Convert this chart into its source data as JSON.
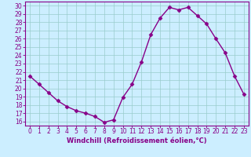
{
  "hours": [
    0,
    1,
    2,
    3,
    4,
    5,
    6,
    7,
    8,
    9,
    10,
    11,
    12,
    13,
    14,
    15,
    16,
    17,
    18,
    19,
    20,
    21,
    22,
    23
  ],
  "values": [
    21.5,
    20.5,
    19.5,
    18.5,
    17.8,
    17.3,
    17.0,
    16.6,
    15.9,
    16.2,
    18.9,
    20.5,
    23.2,
    26.5,
    28.5,
    29.8,
    29.5,
    29.8,
    28.8,
    27.8,
    26.0,
    24.3,
    21.5,
    19.3
  ],
  "line_color": "#880088",
  "marker": "D",
  "marker_size": 2.5,
  "bg_color": "#cceeff",
  "grid_color": "#99cccc",
  "xlabel": "Windchill (Refroidissement éolien,°C)",
  "ylim": [
    15.5,
    30.5
  ],
  "xlim": [
    -0.5,
    23.5
  ],
  "yticks": [
    16,
    17,
    18,
    19,
    20,
    21,
    22,
    23,
    24,
    25,
    26,
    27,
    28,
    29,
    30
  ],
  "xticks": [
    0,
    1,
    2,
    3,
    4,
    5,
    6,
    7,
    8,
    9,
    10,
    11,
    12,
    13,
    14,
    15,
    16,
    17,
    18,
    19,
    20,
    21,
    22,
    23
  ],
  "tick_color": "#880088",
  "spine_color": "#880088",
  "font_color": "#880088",
  "tick_labelsize": 5.5,
  "xlabel_fontsize": 6.0
}
